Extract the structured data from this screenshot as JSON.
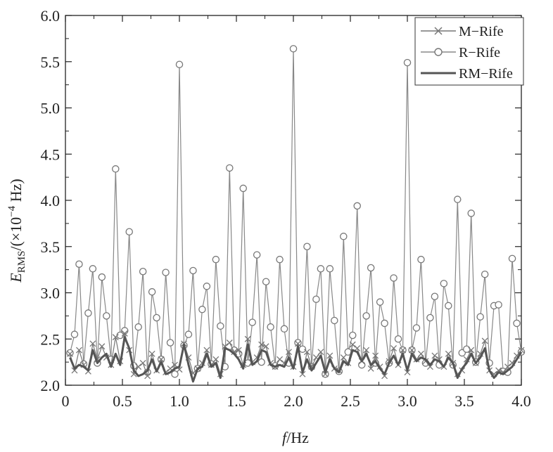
{
  "chart_data": {
    "type": "line",
    "xlabel": {
      "italic": "f",
      "rest": "/Hz"
    },
    "ylabel": {
      "italic": "E",
      "sub": "RMS",
      "rest1": "/(×10",
      "sup": "−4",
      "rest2": " Hz)"
    },
    "xlim": [
      0,
      4
    ],
    "ylim": [
      2,
      6
    ],
    "xticks": [
      "0",
      "0.5",
      "1.0",
      "1.5",
      "2.0",
      "2.5",
      "3.0",
      "3.5",
      "4.0"
    ],
    "yticks": [
      "2.0",
      "2.5",
      "3.0",
      "3.5",
      "4.0",
      "4.5",
      "5.0",
      "5.5",
      "6.0"
    ],
    "grid": false,
    "legend_position": "top-right",
    "series": [
      {
        "name": "M−Rife",
        "marker": "x",
        "color": "#777777",
        "x": [
          0.04,
          0.08,
          0.12,
          0.16,
          0.2,
          0.24,
          0.28,
          0.32,
          0.36,
          0.4,
          0.44,
          0.48,
          0.52,
          0.56,
          0.6,
          0.64,
          0.68,
          0.72,
          0.76,
          0.8,
          0.84,
          0.88,
          0.92,
          0.96,
          1.0,
          1.04,
          1.08,
          1.12,
          1.16,
          1.2,
          1.24,
          1.28,
          1.32,
          1.36,
          1.4,
          1.44,
          1.48,
          1.52,
          1.56,
          1.6,
          1.64,
          1.68,
          1.72,
          1.76,
          1.8,
          1.84,
          1.88,
          1.92,
          1.96,
          2.0,
          2.04,
          2.08,
          2.12,
          2.16,
          2.2,
          2.24,
          2.28,
          2.32,
          2.36,
          2.4,
          2.44,
          2.48,
          2.52,
          2.56,
          2.6,
          2.64,
          2.68,
          2.72,
          2.76,
          2.8,
          2.84,
          2.88,
          2.92,
          2.96,
          3.0,
          3.04,
          3.08,
          3.12,
          3.16,
          3.2,
          3.24,
          3.28,
          3.32,
          3.36,
          3.4,
          3.44,
          3.48,
          3.52,
          3.56,
          3.6,
          3.64,
          3.68,
          3.72,
          3.76,
          3.8,
          3.84,
          3.88,
          3.92,
          3.96,
          4.0
        ],
        "y": [
          2.34,
          2.16,
          2.38,
          2.22,
          2.15,
          2.45,
          2.28,
          2.42,
          2.3,
          2.22,
          2.52,
          2.26,
          2.56,
          2.38,
          2.12,
          2.2,
          2.24,
          2.1,
          2.34,
          2.16,
          2.28,
          2.14,
          2.18,
          2.22,
          2.17,
          2.45,
          2.3,
          2.13,
          2.18,
          2.24,
          2.38,
          2.22,
          2.28,
          2.12,
          2.42,
          2.46,
          2.36,
          2.38,
          2.22,
          2.5,
          2.25,
          2.3,
          2.44,
          2.42,
          2.24,
          2.2,
          2.28,
          2.24,
          2.36,
          2.2,
          2.45,
          2.12,
          2.36,
          2.2,
          2.3,
          2.36,
          2.12,
          2.32,
          2.18,
          2.16,
          2.3,
          2.24,
          2.44,
          2.4,
          2.26,
          2.38,
          2.18,
          2.32,
          2.2,
          2.1,
          2.26,
          2.4,
          2.22,
          2.38,
          2.14,
          2.38,
          2.28,
          2.34,
          2.26,
          2.2,
          2.32,
          2.28,
          2.2,
          2.34,
          2.24,
          2.12,
          2.16,
          2.28,
          2.38,
          2.24,
          2.34,
          2.48,
          2.16,
          2.12,
          2.16,
          2.14,
          2.2,
          2.24,
          2.32,
          2.38
        ]
      },
      {
        "name": "R−Rife",
        "marker": "o",
        "color": "#888888",
        "x": [
          0.04,
          0.08,
          0.12,
          0.16,
          0.2,
          0.24,
          0.28,
          0.32,
          0.36,
          0.4,
          0.44,
          0.48,
          0.52,
          0.56,
          0.6,
          0.64,
          0.68,
          0.72,
          0.76,
          0.8,
          0.84,
          0.88,
          0.92,
          0.96,
          1.0,
          1.04,
          1.08,
          1.12,
          1.16,
          1.2,
          1.24,
          1.28,
          1.32,
          1.36,
          1.4,
          1.44,
          1.48,
          1.52,
          1.56,
          1.6,
          1.64,
          1.68,
          1.72,
          1.76,
          1.8,
          1.84,
          1.88,
          1.92,
          1.96,
          2.0,
          2.04,
          2.08,
          2.12,
          2.16,
          2.2,
          2.24,
          2.28,
          2.32,
          2.36,
          2.4,
          2.44,
          2.48,
          2.52,
          2.56,
          2.6,
          2.64,
          2.68,
          2.72,
          2.76,
          2.8,
          2.84,
          2.88,
          2.92,
          2.96,
          3.0,
          3.04,
          3.08,
          3.12,
          3.16,
          3.2,
          3.24,
          3.28,
          3.32,
          3.36,
          3.4,
          3.44,
          3.48,
          3.52,
          3.56,
          3.6,
          3.64,
          3.68,
          3.72,
          3.76,
          3.8,
          3.84,
          3.88,
          3.92,
          3.96,
          4.0
        ],
        "y": [
          2.35,
          2.55,
          3.31,
          2.23,
          2.78,
          3.26,
          2.24,
          3.17,
          2.75,
          2.28,
          4.34,
          2.54,
          2.59,
          3.66,
          2.21,
          2.63,
          3.23,
          2.14,
          3.01,
          2.73,
          2.28,
          3.22,
          2.46,
          2.12,
          5.47,
          2.43,
          2.55,
          3.24,
          2.18,
          2.82,
          3.07,
          2.23,
          3.36,
          2.64,
          2.2,
          4.35,
          2.38,
          2.34,
          4.13,
          2.24,
          2.68,
          3.41,
          2.25,
          3.12,
          2.63,
          2.21,
          3.36,
          2.61,
          2.24,
          5.64,
          2.46,
          2.39,
          3.5,
          2.2,
          2.93,
          3.26,
          2.12,
          3.26,
          2.7,
          2.15,
          3.61,
          2.36,
          2.54,
          3.94,
          2.22,
          2.75,
          3.27,
          2.24,
          2.9,
          2.67,
          2.24,
          3.16,
          2.5,
          2.38,
          5.49,
          2.38,
          2.62,
          3.36,
          2.24,
          2.73,
          2.96,
          2.22,
          3.1,
          2.86,
          2.22,
          4.01,
          2.35,
          2.39,
          3.86,
          2.25,
          2.74,
          3.2,
          2.24,
          2.86,
          2.87,
          2.15,
          2.14,
          3.37,
          2.67,
          2.36
        ]
      },
      {
        "name": "RM−Rife",
        "marker": "none",
        "color": "#555555",
        "x": [
          0.04,
          0.08,
          0.12,
          0.16,
          0.2,
          0.24,
          0.28,
          0.32,
          0.36,
          0.4,
          0.44,
          0.48,
          0.52,
          0.56,
          0.6,
          0.64,
          0.68,
          0.72,
          0.76,
          0.8,
          0.84,
          0.88,
          0.92,
          0.96,
          1.0,
          1.04,
          1.08,
          1.12,
          1.16,
          1.2,
          1.24,
          1.28,
          1.32,
          1.36,
          1.4,
          1.44,
          1.48,
          1.52,
          1.56,
          1.6,
          1.64,
          1.68,
          1.72,
          1.76,
          1.8,
          1.84,
          1.88,
          1.92,
          1.96,
          2.0,
          2.04,
          2.08,
          2.12,
          2.16,
          2.2,
          2.24,
          2.28,
          2.32,
          2.36,
          2.4,
          2.44,
          2.48,
          2.52,
          2.56,
          2.6,
          2.64,
          2.68,
          2.72,
          2.76,
          2.8,
          2.84,
          2.88,
          2.92,
          2.96,
          3.0,
          3.04,
          3.08,
          3.12,
          3.16,
          3.2,
          3.24,
          3.28,
          3.32,
          3.36,
          3.4,
          3.44,
          3.48,
          3.52,
          3.56,
          3.6,
          3.64,
          3.68,
          3.72,
          3.76,
          3.8,
          3.84,
          3.88,
          3.92,
          3.96,
          4.0
        ],
        "y": [
          2.3,
          2.18,
          2.22,
          2.2,
          2.16,
          2.38,
          2.24,
          2.3,
          2.34,
          2.2,
          2.34,
          2.22,
          2.52,
          2.4,
          2.16,
          2.1,
          2.12,
          2.16,
          2.28,
          2.15,
          2.25,
          2.12,
          2.14,
          2.18,
          2.2,
          2.44,
          2.22,
          2.04,
          2.18,
          2.2,
          2.34,
          2.2,
          2.24,
          2.08,
          2.4,
          2.38,
          2.34,
          2.28,
          2.18,
          2.44,
          2.22,
          2.26,
          2.38,
          2.36,
          2.22,
          2.2,
          2.22,
          2.2,
          2.3,
          2.18,
          2.42,
          2.14,
          2.28,
          2.16,
          2.24,
          2.32,
          2.14,
          2.28,
          2.18,
          2.14,
          2.26,
          2.22,
          2.38,
          2.36,
          2.26,
          2.34,
          2.22,
          2.26,
          2.18,
          2.12,
          2.24,
          2.32,
          2.22,
          2.34,
          2.16,
          2.34,
          2.26,
          2.3,
          2.28,
          2.22,
          2.28,
          2.26,
          2.2,
          2.3,
          2.24,
          2.08,
          2.18,
          2.24,
          2.34,
          2.24,
          2.3,
          2.4,
          2.16,
          2.08,
          2.14,
          2.12,
          2.16,
          2.2,
          2.28,
          2.36
        ]
      }
    ]
  }
}
